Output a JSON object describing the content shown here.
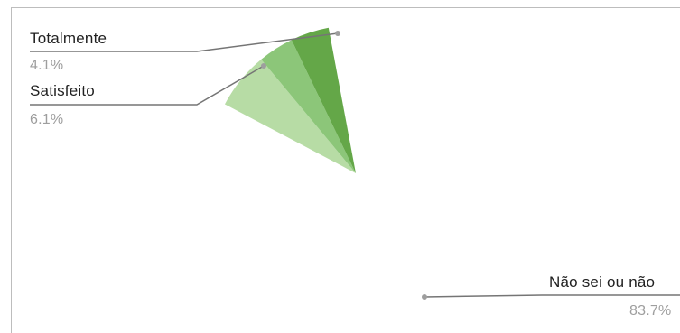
{
  "chart_data": {
    "type": "pie",
    "slices": [
      {
        "label": "Não sei ou não",
        "value": 83.7,
        "display": "83.7%",
        "color": "#ffffff"
      },
      {
        "label": "Satisfeito",
        "value": 6.1,
        "display": "6.1%",
        "color": "#b7dca5"
      },
      {
        "label": "",
        "value": 3.8,
        "display": "",
        "color": "#8cc679"
      },
      {
        "label": "Totalmente",
        "value": 4.1,
        "display": "4.1%",
        "color": "#64a748"
      }
    ]
  }
}
